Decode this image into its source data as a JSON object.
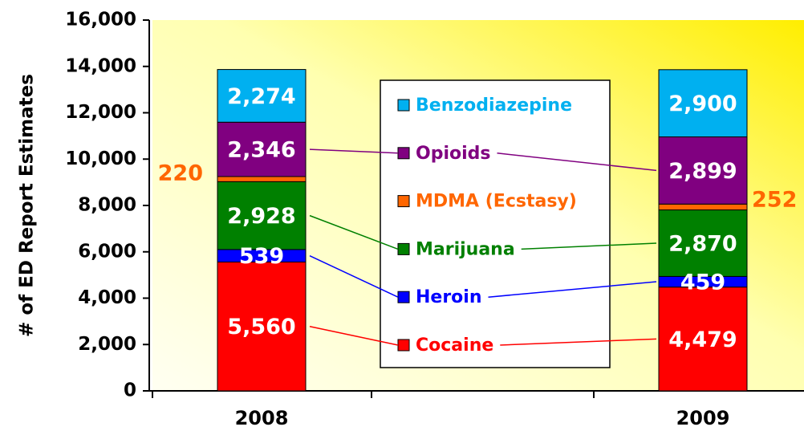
{
  "chart_data": {
    "type": "stacked_bar",
    "y_label": "# of ED Report Estimates",
    "categories": [
      "2008",
      "2009"
    ],
    "ylim": [
      0,
      16000
    ],
    "yticks": [
      0,
      {
        "value": 2000,
        "label": "2,000"
      },
      {
        "value": 4000,
        "label": "4,000"
      },
      {
        "value": 6000,
        "label": "6,000"
      },
      {
        "value": 8000,
        "label": "8,000"
      },
      {
        "value": 10000,
        "label": "10,000"
      },
      {
        "value": 12000,
        "label": "12,000"
      },
      {
        "value": 14000,
        "label": "14,000"
      },
      {
        "value": 16000,
        "label": "16,000"
      }
    ],
    "series": [
      {
        "name": "Cocaine",
        "color": "#ff0000",
        "values": [
          5560,
          4479
        ],
        "value_labels": [
          "5,560",
          "4,479"
        ]
      },
      {
        "name": "Heroin",
        "color": "#0000ff",
        "values": [
          539,
          459
        ],
        "value_labels": [
          "539",
          "459"
        ]
      },
      {
        "name": "Marijuana",
        "color": "#008000",
        "values": [
          2928,
          2870
        ],
        "value_labels": [
          "2,928",
          "2,870"
        ]
      },
      {
        "name": "MDMA (Ecstasy)",
        "color": "#ff6600",
        "values": [
          220,
          252
        ],
        "value_labels": [
          "220",
          "252"
        ]
      },
      {
        "name": "Opioids",
        "color": "#800080",
        "values": [
          2346,
          2899
        ],
        "value_labels": [
          "2,346",
          "2,899"
        ]
      },
      {
        "name": "Benzodiazepine",
        "color": "#00b0f0",
        "values": [
          2274,
          2900
        ],
        "value_labels": [
          "2,274",
          "2,900"
        ]
      }
    ]
  }
}
